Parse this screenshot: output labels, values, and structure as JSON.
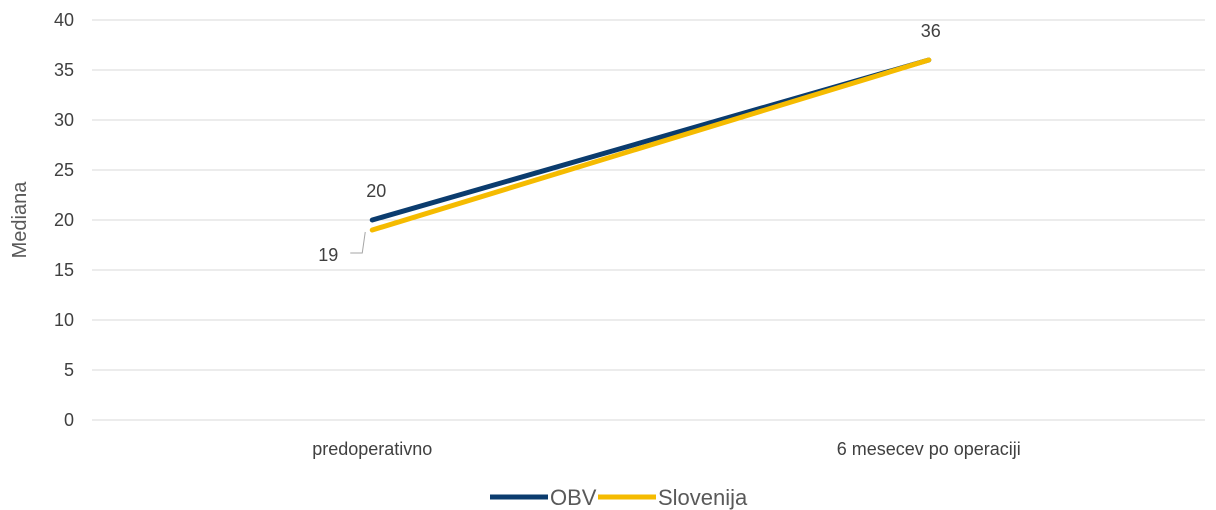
{
  "chart_data": {
    "type": "line",
    "ylabel": "Mediana",
    "ylim": [
      0,
      40
    ],
    "yticks": [
      "0",
      "5",
      "10",
      "15",
      "20",
      "25",
      "30",
      "35",
      "40"
    ],
    "categories": [
      "predoperativno",
      "6 mesecev po operaciji"
    ],
    "series": [
      {
        "name": "OBV",
        "values": [
          20,
          36
        ],
        "color": "#0b3c6e"
      },
      {
        "name": "Slovenija",
        "values": [
          19,
          36
        ],
        "color": "#f5bb00"
      }
    ],
    "data_labels": [
      {
        "series": "OBV",
        "index": 0,
        "text": "20"
      },
      {
        "series": "Slovenija",
        "index": 0,
        "text": "19"
      },
      {
        "series": "OBV",
        "index": 1,
        "text": "36"
      }
    ],
    "grid": true,
    "legend_position": "bottom",
    "gridline_color": "#d9d9d9"
  }
}
